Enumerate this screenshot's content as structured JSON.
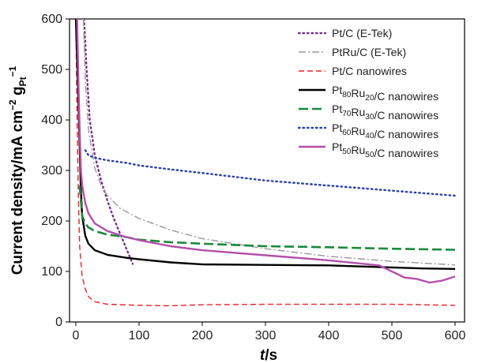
{
  "chart_data": {
    "type": "line",
    "xlabel_main": "t",
    "xlabel_unit": "/s",
    "ylabel_main": "Current density/mA cm",
    "ylabel_exp1": "−2",
    "ylabel_mid": " g",
    "ylabel_sub": "Pt",
    "ylabel_exp2": "−1",
    "xlim": [
      -10,
      615
    ],
    "ylim": [
      0,
      600
    ],
    "xticks": [
      0,
      100,
      200,
      300,
      400,
      500,
      600
    ],
    "yticks": [
      0,
      100,
      200,
      300,
      400,
      500,
      600
    ],
    "grid": false,
    "legend_position": "top-right",
    "series": [
      {
        "name": "Pt/C (E-Tek)",
        "label_parts": [
          {
            "t": "Pt/C (E-Tek)"
          }
        ],
        "color": "#7b2b8f",
        "dash": "dotted",
        "x": [
          13,
          17,
          22,
          30,
          40,
          50,
          60,
          70,
          80,
          90
        ],
        "y": [
          600,
          500,
          400,
          330,
          280,
          240,
          205,
          175,
          145,
          115
        ]
      },
      {
        "name": "PtRu/C (E-Tek)",
        "label_parts": [
          {
            "t": "PtRu/C (E-Tek)"
          }
        ],
        "color": "#999999",
        "dash": "dashdot",
        "x": [
          12,
          15,
          20,
          30,
          40,
          50,
          70,
          100,
          150,
          200,
          300,
          400,
          500,
          600
        ],
        "y": [
          600,
          480,
          380,
          305,
          270,
          250,
          225,
          205,
          182,
          165,
          145,
          130,
          120,
          113
        ]
      },
      {
        "name": "Pt/C nanowires",
        "label_parts": [
          {
            "t": "Pt/C nanowires"
          }
        ],
        "color": "#e8222a",
        "dash": "dashed",
        "x": [
          0,
          2,
          4,
          6,
          10,
          15,
          20,
          30,
          50,
          100,
          150,
          200,
          300,
          400,
          500,
          600
        ],
        "y": [
          600,
          400,
          250,
          150,
          90,
          65,
          50,
          40,
          35,
          33,
          32,
          34,
          35,
          35,
          35,
          33
        ]
      },
      {
        "name": "Pt80Ru20/C nanowires",
        "label_parts": [
          {
            "t": "Pt"
          },
          {
            "t": "80",
            "sub": true
          },
          {
            "t": "Ru"
          },
          {
            "t": "20",
            "sub": true
          },
          {
            "t": "/C nanowires"
          }
        ],
        "color": "#000000",
        "dash": "solid",
        "x": [
          0,
          3,
          6,
          8,
          10,
          15,
          20,
          30,
          50,
          80,
          100,
          150,
          200,
          300,
          400,
          500,
          550,
          600
        ],
        "y": [
          600,
          480,
          350,
          260,
          210,
          170,
          155,
          142,
          133,
          127,
          124,
          118,
          114,
          113,
          112,
          108,
          106,
          105
        ]
      },
      {
        "name": "Pt70Ru30/C nanowires",
        "label_parts": [
          {
            "t": "Pt"
          },
          {
            "t": "70",
            "sub": true
          },
          {
            "t": "Ru"
          },
          {
            "t": "30",
            "sub": true
          },
          {
            "t": "/C nanowires"
          }
        ],
        "color": "#1a8a3c",
        "dash": "longdash",
        "x": [
          6,
          8,
          10,
          15,
          20,
          30,
          50,
          80,
          100,
          150,
          200,
          300,
          400,
          500,
          600
        ],
        "y": [
          270,
          240,
          210,
          195,
          187,
          180,
          173,
          168,
          163,
          158,
          155,
          150,
          148,
          145,
          143
        ]
      },
      {
        "name": "Pt60Ru40/C nanowires",
        "label_parts": [
          {
            "t": "Pt"
          },
          {
            "t": "60",
            "sub": true
          },
          {
            "t": "Ru"
          },
          {
            "t": "40",
            "sub": true
          },
          {
            "t": "/C nanowires"
          }
        ],
        "color": "#2a3fa8",
        "dash": "dotted",
        "x": [
          15,
          20,
          30,
          50,
          80,
          100,
          150,
          200,
          300,
          400,
          500,
          600
        ],
        "y": [
          340,
          330,
          325,
          320,
          315,
          310,
          302,
          295,
          280,
          270,
          260,
          250
        ]
      },
      {
        "name": "Pt50Ru50/C nanowires",
        "label_parts": [
          {
            "t": "Pt"
          },
          {
            "t": "50",
            "sub": true
          },
          {
            "t": "Ru"
          },
          {
            "t": "50",
            "sub": true
          },
          {
            "t": "/C nanowires"
          }
        ],
        "color": "#b34fa8",
        "dash": "solid",
        "x": [
          2,
          4,
          6,
          8,
          10,
          15,
          20,
          30,
          50,
          80,
          100,
          150,
          200,
          300,
          400,
          480,
          500,
          520,
          540,
          560,
          580,
          600
        ],
        "y": [
          600,
          480,
          380,
          300,
          270,
          235,
          215,
          195,
          180,
          168,
          162,
          150,
          142,
          132,
          122,
          112,
          100,
          88,
          85,
          78,
          82,
          90
        ]
      }
    ]
  }
}
